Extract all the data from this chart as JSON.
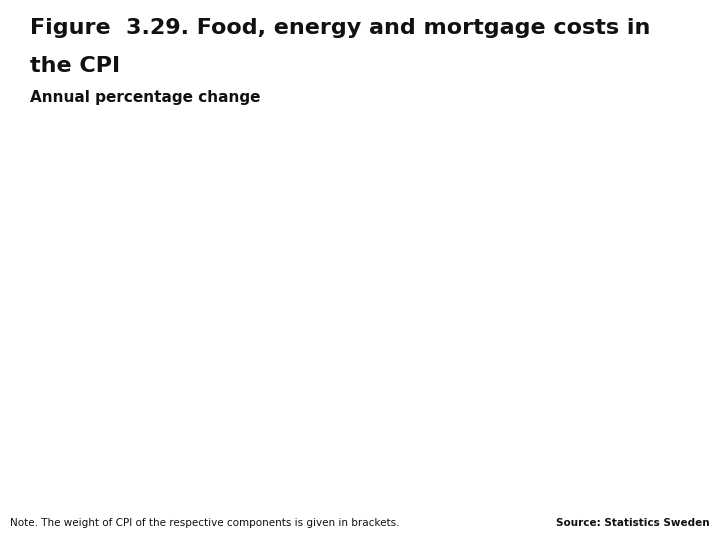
{
  "title_line1": "Figure  3.29. Food, energy and mortgage costs in",
  "title_line2": "the CPI",
  "subtitle": "Annual percentage change",
  "note_text": "Note. The weight of CPI of the respective components is given in brackets.",
  "source_text": "Source: Statistics Sweden",
  "background_color": "#ffffff",
  "title_color": "#111111",
  "subtitle_color": "#111111",
  "bottom_bar_color": "#1a3a6b",
  "top_right_box_color": "#1a3a6b",
  "note_color": "#111111",
  "source_color": "#111111",
  "title_fontsize": 16,
  "subtitle_fontsize": 11,
  "note_fontsize": 7.5,
  "source_fontsize": 7.5
}
